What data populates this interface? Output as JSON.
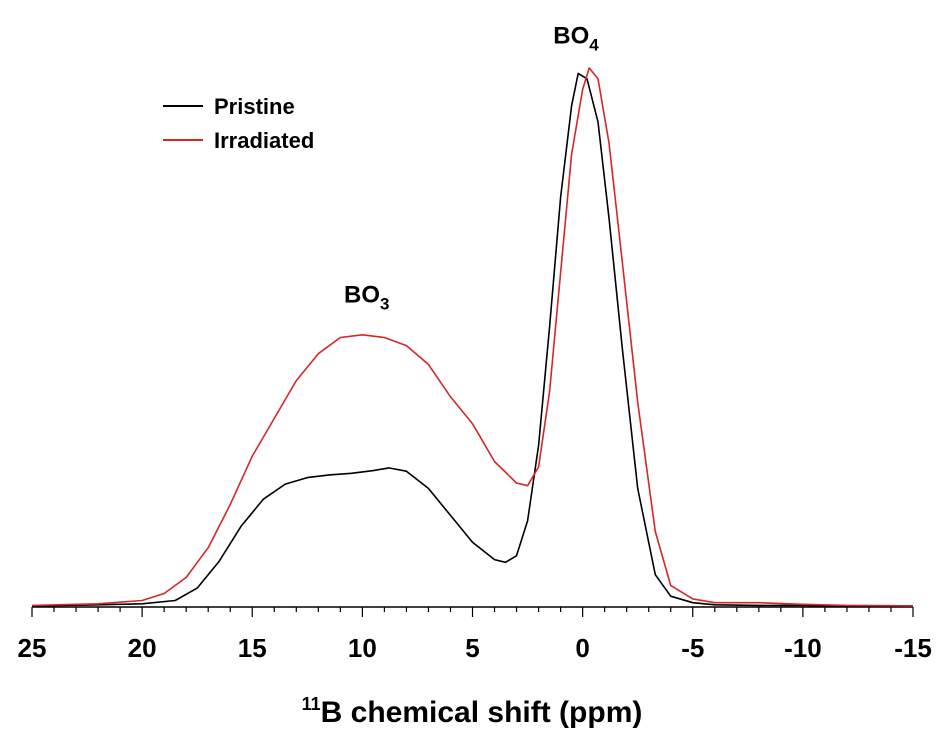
{
  "chart_data": {
    "type": "line",
    "xlabel_sup": "11",
    "xlabel_main": "B chemical shift (ppm)",
    "xlim": [
      25,
      -15
    ],
    "ylim": [
      0,
      1.0
    ],
    "x_ticks": [
      25,
      20,
      15,
      10,
      5,
      0,
      -5,
      -10,
      -15
    ],
    "x_tick_labels": [
      "25",
      "20",
      "15",
      "10",
      "5",
      "0",
      "-5",
      "-10",
      "-15"
    ],
    "y_axis_shown": false,
    "grid": false,
    "legend_position": "top-left",
    "annotations": [
      {
        "base": "BO",
        "sub": "3",
        "x": 9.8,
        "y": 0.565
      },
      {
        "base": "BO",
        "sub": "4",
        "x": 0.3,
        "y": 1.045
      }
    ],
    "series": [
      {
        "name": "Pristine",
        "color": "#000000",
        "x": [
          25,
          22,
          20,
          18.5,
          17.5,
          16.5,
          15.5,
          14.5,
          13.5,
          12.5,
          11.5,
          10.5,
          9.5,
          8.8,
          8,
          7,
          6,
          5,
          4,
          3.5,
          3,
          2.5,
          2,
          1.5,
          1,
          0.5,
          0.2,
          -0.2,
          -0.7,
          -1.2,
          -1.8,
          -2.5,
          -3.3,
          -4,
          -5,
          -6,
          -8,
          -10,
          -12,
          -15
        ],
        "y": [
          0.002,
          0.004,
          0.006,
          0.012,
          0.035,
          0.085,
          0.15,
          0.2,
          0.228,
          0.24,
          0.245,
          0.248,
          0.253,
          0.258,
          0.252,
          0.22,
          0.17,
          0.12,
          0.088,
          0.083,
          0.095,
          0.16,
          0.3,
          0.52,
          0.76,
          0.93,
          0.99,
          0.98,
          0.9,
          0.72,
          0.48,
          0.22,
          0.06,
          0.02,
          0.008,
          0.004,
          0.003,
          0.003,
          0.002,
          0.002
        ]
      },
      {
        "name": "Irradiated",
        "color": "#d62728",
        "x": [
          25,
          22,
          20,
          19,
          18,
          17,
          16,
          15,
          14,
          13,
          12,
          11,
          10,
          9,
          8,
          7,
          6,
          5,
          4,
          3,
          2.5,
          2,
          1.5,
          1,
          0.5,
          0,
          -0.3,
          -0.7,
          -1.2,
          -1.8,
          -2.5,
          -3.3,
          -4,
          -5,
          -6,
          -8,
          -10,
          -12,
          -15
        ],
        "y": [
          0.003,
          0.006,
          0.012,
          0.025,
          0.055,
          0.11,
          0.19,
          0.28,
          0.35,
          0.42,
          0.47,
          0.5,
          0.505,
          0.5,
          0.485,
          0.45,
          0.39,
          0.34,
          0.27,
          0.23,
          0.225,
          0.26,
          0.4,
          0.62,
          0.84,
          0.96,
          1.0,
          0.98,
          0.86,
          0.64,
          0.38,
          0.14,
          0.04,
          0.015,
          0.008,
          0.008,
          0.005,
          0.003,
          0.002
        ]
      }
    ]
  }
}
